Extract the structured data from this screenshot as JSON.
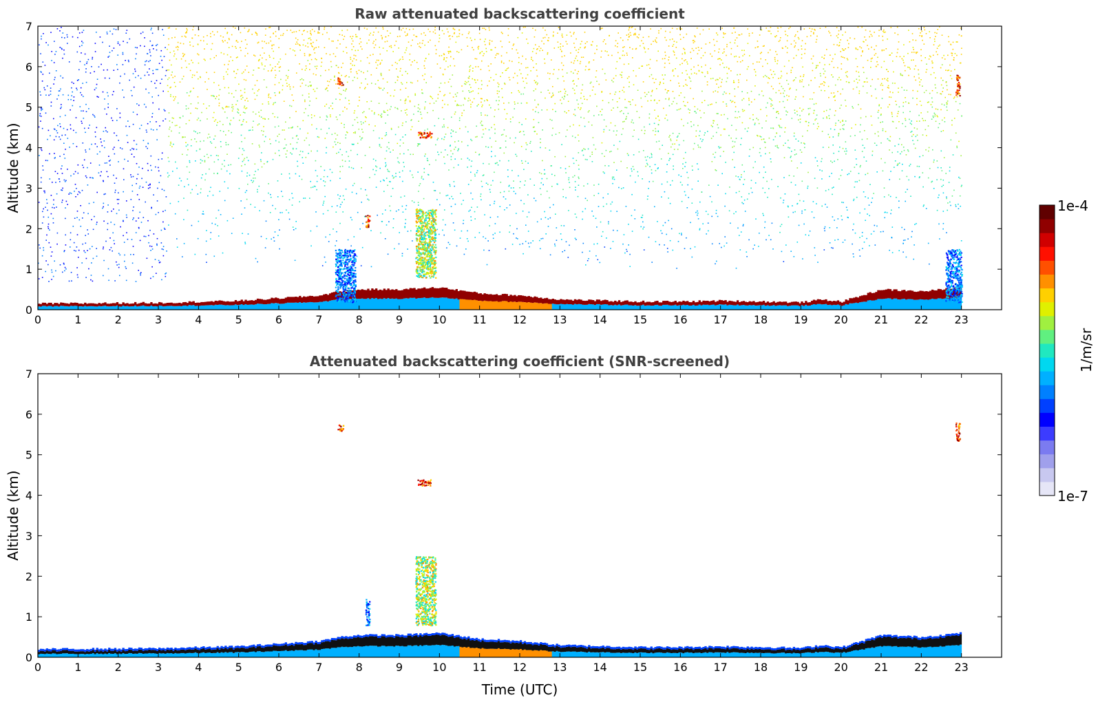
{
  "chart_data": [
    {
      "type": "heatmap",
      "title": "Raw attenuated backscattering coefficient",
      "xlabel": "",
      "ylabel": "Altitude (km)",
      "xlim": [
        0,
        24
      ],
      "ylim": [
        0,
        7
      ],
      "x_ticks": [
        "0",
        "1",
        "2",
        "3",
        "4",
        "5",
        "6",
        "7",
        "8",
        "9",
        "10",
        "11",
        "12",
        "13",
        "14",
        "15",
        "16",
        "17",
        "18",
        "19",
        "20",
        "21",
        "22",
        "23"
      ],
      "y_ticks": [
        "0",
        "1",
        "2",
        "3",
        "4",
        "5",
        "6",
        "7"
      ],
      "data_end_hour": 23,
      "boundary_layer_top_km": [
        [
          0,
          0.15
        ],
        [
          3,
          0.17
        ],
        [
          5,
          0.22
        ],
        [
          7,
          0.35
        ],
        [
          7.5,
          0.45
        ],
        [
          8,
          0.5
        ],
        [
          9,
          0.5
        ],
        [
          10,
          0.55
        ],
        [
          11,
          0.4
        ],
        [
          12,
          0.35
        ],
        [
          13,
          0.25
        ],
        [
          15,
          0.2
        ],
        [
          16,
          0.2
        ],
        [
          17,
          0.22
        ],
        [
          18,
          0.2
        ],
        [
          19,
          0.18
        ],
        [
          19.5,
          0.25
        ],
        [
          20,
          0.2
        ],
        [
          20.5,
          0.35
        ],
        [
          21,
          0.5
        ],
        [
          22,
          0.45
        ],
        [
          22.5,
          0.5
        ],
        [
          23,
          0.55
        ]
      ],
      "features": [
        {
          "t": [
            7.45,
            7.6
          ],
          "alt_km": [
            5.55,
            5.75
          ],
          "level": "high"
        },
        {
          "t": [
            9.45,
            9.8
          ],
          "alt_km": [
            4.25,
            4.4
          ],
          "level": "high"
        },
        {
          "t": [
            9.4,
            9.9
          ],
          "alt_km": [
            0.8,
            2.5
          ],
          "level": "mid"
        },
        {
          "t": [
            7.4,
            7.9
          ],
          "alt_km": [
            0.2,
            1.5
          ],
          "level": "low"
        },
        {
          "t": [
            8.15,
            8.25
          ],
          "alt_km": [
            2.05,
            2.35
          ],
          "level": "high"
        },
        {
          "t": [
            22.85,
            22.95
          ],
          "alt_km": [
            5.3,
            5.8
          ],
          "level": "high"
        },
        {
          "t": [
            22.6,
            23.0
          ],
          "alt_km": [
            0.2,
            1.5
          ],
          "level": "low"
        }
      ]
    },
    {
      "type": "heatmap",
      "title": "Attenuated backscattering coefficient (SNR-screened)",
      "xlabel": "Time (UTC)",
      "ylabel": "Altitude (km)",
      "xlim": [
        0,
        24
      ],
      "ylim": [
        0,
        7
      ],
      "x_ticks": [
        "0",
        "1",
        "2",
        "3",
        "4",
        "5",
        "6",
        "7",
        "8",
        "9",
        "10",
        "11",
        "12",
        "13",
        "14",
        "15",
        "16",
        "17",
        "18",
        "19",
        "20",
        "21",
        "22",
        "23"
      ],
      "y_ticks": [
        "0",
        "1",
        "2",
        "3",
        "4",
        "5",
        "6",
        "7"
      ],
      "data_end_hour": 23,
      "features": [
        {
          "t": [
            7.45,
            7.6
          ],
          "alt_km": [
            5.6,
            5.75
          ],
          "level": "high"
        },
        {
          "t": [
            9.45,
            9.8
          ],
          "alt_km": [
            4.25,
            4.4
          ],
          "level": "high"
        },
        {
          "t": [
            9.4,
            9.9
          ],
          "alt_km": [
            0.8,
            2.5
          ],
          "level": "mid"
        },
        {
          "t": [
            8.15,
            8.25
          ],
          "alt_km": [
            0.8,
            1.45
          ],
          "level": "low"
        },
        {
          "t": [
            22.85,
            22.95
          ],
          "alt_km": [
            5.35,
            5.8
          ],
          "level": "high"
        }
      ]
    }
  ],
  "colorbar": {
    "label": "1/m/sr",
    "max_label": "1e-4",
    "min_label": "1e-7",
    "scale": "log",
    "colors": [
      "#e6e6f7",
      "#c8c8f0",
      "#a0a0ec",
      "#7b7bf0",
      "#3c3cff",
      "#0000ff",
      "#0040ff",
      "#0080ff",
      "#00b0ff",
      "#00d8f0",
      "#20e8c0",
      "#60f080",
      "#a0f040",
      "#e0f000",
      "#ffd000",
      "#ff9000",
      "#ff5000",
      "#ff1000",
      "#d00000",
      "#900000",
      "#600000"
    ]
  }
}
